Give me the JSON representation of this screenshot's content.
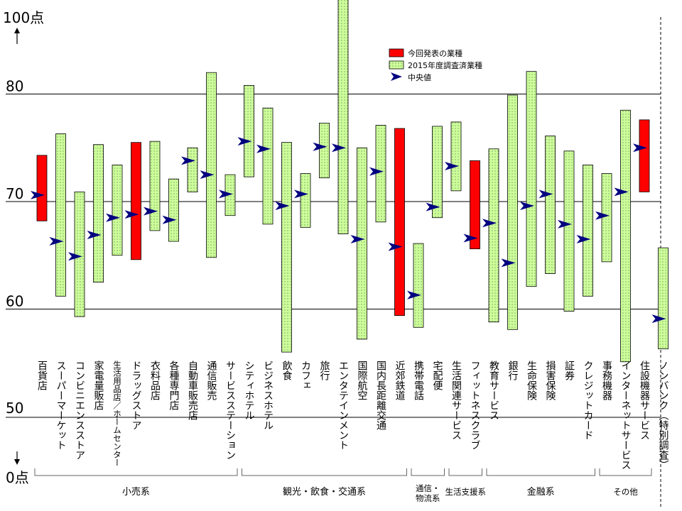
{
  "chart_data": {
    "type": "range",
    "y_axis": {
      "ticks": [
        {
          "value": 80,
          "label": "80"
        },
        {
          "value": 70,
          "label": "70"
        },
        {
          "value": 60,
          "label": "60"
        }
      ],
      "top_label": "100点",
      "bottom_label": "0点",
      "break_label": "50"
    },
    "legend": [
      {
        "key": "current",
        "label": "今回発表の業種",
        "color": "#ff0000"
      },
      {
        "key": "past",
        "label": "2015年度調査済業種",
        "color": "#ccff99"
      },
      {
        "key": "median",
        "label": "中央値",
        "color": "#000080"
      }
    ],
    "series": [
      {
        "name": "百貨店",
        "low": 68.2,
        "high": 74.3,
        "median": 70.6,
        "kind": "current"
      },
      {
        "name": "スーパーマーケット",
        "low": 61.2,
        "high": 76.3,
        "median": 66.3,
        "kind": "past"
      },
      {
        "name": "コンビニエンスストア",
        "low": 59.3,
        "high": 70.9,
        "median": 64.9,
        "kind": "past"
      },
      {
        "name": "家電量販店",
        "low": 62.5,
        "high": 75.3,
        "median": 66.9,
        "kind": "past"
      },
      {
        "name": "生活用品店／ホームセンター",
        "low": 65.0,
        "high": 73.4,
        "median": 68.5,
        "kind": "past"
      },
      {
        "name": "ドラッグストア",
        "low": 64.6,
        "high": 75.5,
        "median": 68.8,
        "kind": "current"
      },
      {
        "name": "衣料品店",
        "low": 67.3,
        "high": 75.6,
        "median": 69.1,
        "kind": "past"
      },
      {
        "name": "各種専門店",
        "low": 66.3,
        "high": 72.1,
        "median": 68.3,
        "kind": "past"
      },
      {
        "name": "自動車販売店",
        "low": 70.9,
        "high": 75.0,
        "median": 73.8,
        "kind": "past"
      },
      {
        "name": "通信販売",
        "low": 64.8,
        "high": 82.0,
        "median": 72.5,
        "kind": "past"
      },
      {
        "name": "サービスステーション",
        "low": 68.7,
        "high": 72.5,
        "median": 70.7,
        "kind": "past"
      },
      {
        "name": "シティホテル",
        "low": 72.3,
        "high": 80.8,
        "median": 75.6,
        "kind": "past"
      },
      {
        "name": "ビジネスホテル",
        "low": 67.9,
        "high": 78.7,
        "median": 74.9,
        "kind": "past"
      },
      {
        "name": "飲食",
        "low": 56.0,
        "high": 75.5,
        "median": 69.6,
        "kind": "past"
      },
      {
        "name": "カフェ",
        "low": 67.6,
        "high": 72.6,
        "median": 70.7,
        "kind": "past"
      },
      {
        "name": "旅行",
        "low": 72.2,
        "high": 77.3,
        "median": 75.1,
        "kind": "past"
      },
      {
        "name": "エンタテインメント",
        "low": 67.0,
        "high": 89.4,
        "median": 75.0,
        "kind": "past"
      },
      {
        "name": "国際航空",
        "low": 57.2,
        "high": 75.0,
        "median": 66.5,
        "kind": "past"
      },
      {
        "name": "国内長距離交通",
        "low": 68.1,
        "high": 77.1,
        "median": 72.8,
        "kind": "past"
      },
      {
        "name": "近郊鉄道",
        "low": 59.4,
        "high": 76.8,
        "median": 65.8,
        "kind": "current"
      },
      {
        "name": "携帯電話",
        "low": 58.3,
        "high": 66.1,
        "median": 61.3,
        "kind": "past"
      },
      {
        "name": "宅配便",
        "low": 68.5,
        "high": 77.0,
        "median": 69.5,
        "kind": "past"
      },
      {
        "name": "生活関連サービス",
        "low": 71.0,
        "high": 77.4,
        "median": 73.3,
        "kind": "past"
      },
      {
        "name": "フィットネスクラブ",
        "low": 65.6,
        "high": 73.8,
        "median": 66.6,
        "kind": "current"
      },
      {
        "name": "教育サービス",
        "low": 58.8,
        "high": 74.9,
        "median": 68.0,
        "kind": "past"
      },
      {
        "name": "銀行",
        "low": 58.1,
        "high": 79.9,
        "median": 64.3,
        "kind": "past"
      },
      {
        "name": "生命保険",
        "low": 62.1,
        "high": 82.1,
        "median": 69.6,
        "kind": "past"
      },
      {
        "name": "損害保険",
        "low": 63.3,
        "high": 76.1,
        "median": 70.7,
        "kind": "past"
      },
      {
        "name": "証券",
        "low": 59.8,
        "high": 74.7,
        "median": 67.9,
        "kind": "past"
      },
      {
        "name": "クレジットカード",
        "low": 61.2,
        "high": 73.4,
        "median": 66.5,
        "kind": "past"
      },
      {
        "name": "事務機器",
        "low": 64.4,
        "high": 72.6,
        "median": 68.7,
        "kind": "past"
      },
      {
        "name": "インターネットサービス",
        "low": 55.1,
        "high": 78.5,
        "median": 70.9,
        "kind": "past"
      },
      {
        "name": "住設機器サービス",
        "low": 70.9,
        "high": 77.6,
        "median": 75.0,
        "kind": "current"
      },
      {
        "name": "ノンバンク（特別調査）",
        "low": 56.3,
        "high": 65.7,
        "median": 59.1,
        "kind": "past"
      }
    ],
    "groups": [
      {
        "label": "小売系",
        "first": 0,
        "last": 10
      },
      {
        "label": "観光・飲食・交通系",
        "first": 11,
        "last": 19
      },
      {
        "label": "通信・\n物流系",
        "first": 20,
        "last": 21
      },
      {
        "label": "生活支援系",
        "first": 22,
        "last": 23
      },
      {
        "label": "金融系",
        "first": 24,
        "last": 29
      },
      {
        "label": "その他",
        "first": 30,
        "last": 32
      }
    ]
  }
}
